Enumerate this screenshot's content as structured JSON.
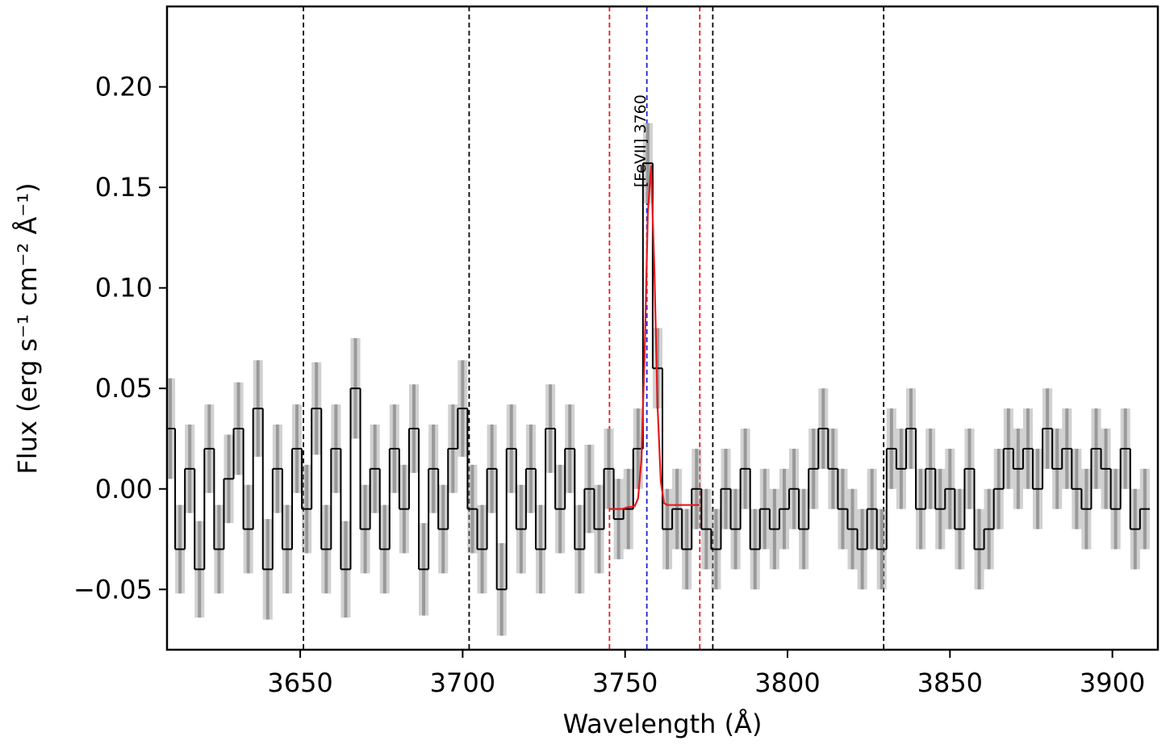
{
  "chart_data": {
    "type": "step",
    "xlabel": "Wavelength (Å)",
    "ylabel": "Flux (erg s⁻¹ cm⁻² Å⁻¹)",
    "xlim": [
      3609,
      3914
    ],
    "ylim": [
      -0.08,
      0.24
    ],
    "xticks": [
      3650,
      3700,
      3750,
      3800,
      3850,
      3900
    ],
    "yticks": [
      {
        "value": -0.05,
        "label": "−0.05"
      },
      {
        "value": 0,
        "label": "0.00"
      },
      {
        "value": 0.05,
        "label": "0.05"
      },
      {
        "value": 0.1,
        "label": "0.10"
      },
      {
        "value": 0.15,
        "label": "0.15"
      },
      {
        "value": 0.2,
        "label": "0.20"
      }
    ],
    "color": "#000000",
    "error_color": "#999999",
    "x": [
      3610,
      3613,
      3616,
      3619,
      3622,
      3625,
      3628,
      3631,
      3634,
      3637,
      3640,
      3643,
      3646,
      3649,
      3652,
      3655,
      3658,
      3661,
      3664,
      3667,
      3670,
      3673,
      3676,
      3679,
      3682,
      3685,
      3688,
      3691,
      3694,
      3697,
      3700,
      3703,
      3706,
      3709,
      3712,
      3715,
      3718,
      3721,
      3724,
      3727,
      3730,
      3733,
      3736,
      3739,
      3742,
      3745,
      3748,
      3751,
      3754,
      3757,
      3760,
      3763,
      3766,
      3769,
      3772,
      3775,
      3778,
      3781,
      3784,
      3787,
      3790,
      3793,
      3796,
      3799,
      3802,
      3805,
      3808,
      3811,
      3814,
      3817,
      3820,
      3823,
      3826,
      3829,
      3832,
      3835,
      3838,
      3841,
      3844,
      3847,
      3850,
      3853,
      3856,
      3859,
      3862,
      3865,
      3868,
      3871,
      3874,
      3877,
      3880,
      3883,
      3886,
      3889,
      3892,
      3895,
      3898,
      3901,
      3904,
      3907,
      3910
    ],
    "values": [
      0.03,
      -0.03,
      0.01,
      -0.04,
      0.02,
      -0.03,
      0.005,
      0.03,
      -0.02,
      0.04,
      -0.04,
      0.01,
      -0.03,
      0.02,
      -0.01,
      0.04,
      -0.03,
      0.02,
      -0.04,
      0.05,
      -0.02,
      0.01,
      -0.03,
      0.02,
      -0.01,
      0.03,
      -0.04,
      0.01,
      -0.02,
      0.02,
      0.04,
      -0.01,
      -0.03,
      0.01,
      -0.05,
      0.02,
      -0.02,
      0.01,
      -0.03,
      0.03,
      -0.01,
      0.02,
      -0.03,
      0,
      -0.02,
      0.01,
      -0.015,
      -0.01,
      0.02,
      0.162,
      0.06,
      -0.02,
      -0.01,
      -0.03,
      0,
      -0.02,
      -0.03,
      0,
      -0.02,
      0.01,
      -0.03,
      -0.01,
      -0.02,
      -0.01,
      0,
      -0.02,
      0.01,
      0.03,
      0.01,
      -0.01,
      -0.02,
      -0.03,
      -0.01,
      -0.03,
      0.02,
      0.01,
      0.03,
      -0.01,
      0.01,
      -0.01,
      0,
      -0.02,
      0.01,
      -0.03,
      -0.02,
      0,
      0.02,
      0.01,
      0.02,
      0,
      0.03,
      0.01,
      0.02,
      0,
      -0.01,
      0.02,
      0.01,
      -0.01,
      0.02,
      -0.02,
      -0.01
    ],
    "errors": [
      0.025,
      0.022,
      0.022,
      0.024,
      0.022,
      0.022,
      0.022,
      0.023,
      0.022,
      0.024,
      0.025,
      0.022,
      0.022,
      0.022,
      0.022,
      0.023,
      0.022,
      0.022,
      0.024,
      0.025,
      0.022,
      0.022,
      0.022,
      0.022,
      0.022,
      0.022,
      0.023,
      0.022,
      0.022,
      0.022,
      0.024,
      0.022,
      0.022,
      0.022,
      0.023,
      0.022,
      0.022,
      0.022,
      0.022,
      0.022,
      0.022,
      0.022,
      0.022,
      0.022,
      0.022,
      0.02,
      0.02,
      0.02,
      0.02,
      0.02,
      0.02,
      0.02,
      0.02,
      0.02,
      0.02,
      0.02,
      0.02,
      0.02,
      0.02,
      0.02,
      0.02,
      0.02,
      0.02,
      0.02,
      0.02,
      0.02,
      0.02,
      0.02,
      0.02,
      0.02,
      0.02,
      0.02,
      0.02,
      0.02,
      0.02,
      0.02,
      0.02,
      0.02,
      0.02,
      0.02,
      0.02,
      0.02,
      0.02,
      0.02,
      0.02,
      0.02,
      0.02,
      0.02,
      0.02,
      0.02,
      0.02,
      0.02,
      0.02,
      0.02,
      0.02,
      0.02,
      0.02,
      0.02,
      0.02,
      0.02,
      0.02
    ],
    "fit": {
      "color": "#e8191c",
      "x": [
        3745,
        3746,
        3747,
        3748,
        3749,
        3750,
        3751,
        3752,
        3753,
        3754,
        3755,
        3756,
        3757,
        3758,
        3759,
        3760,
        3761,
        3762,
        3763,
        3764,
        3765,
        3766,
        3767,
        3768,
        3769,
        3770,
        3771,
        3772,
        3773
      ],
      "values": [
        -0.01,
        -0.01,
        -0.01,
        -0.01,
        -0.01,
        -0.0095,
        -0.009,
        -0.009,
        -0.0085,
        -0.0047,
        0.014,
        0.066,
        0.137,
        0.161,
        0.11,
        0.041,
        0.0036,
        -0.0071,
        -0.008,
        -0.008,
        -0.008,
        -0.008,
        -0.008,
        -0.008,
        -0.008,
        -0.008,
        -0.008,
        -0.008,
        -0.008
      ]
    },
    "vlines": [
      {
        "x": 3651,
        "color": "#000000"
      },
      {
        "x": 3702,
        "color": "#000000"
      },
      {
        "x": 3745.2,
        "color": "#e8191c"
      },
      {
        "x": 3756.7,
        "color": "#1f1fd6"
      },
      {
        "x": 3773,
        "color": "#e8191c"
      },
      {
        "x": 3777,
        "color": "#000000"
      },
      {
        "x": 3829.6,
        "color": "#000000"
      }
    ],
    "annotation": {
      "text": "[FeVII] 3760",
      "x": 3754.5,
      "y": 0.15
    }
  }
}
